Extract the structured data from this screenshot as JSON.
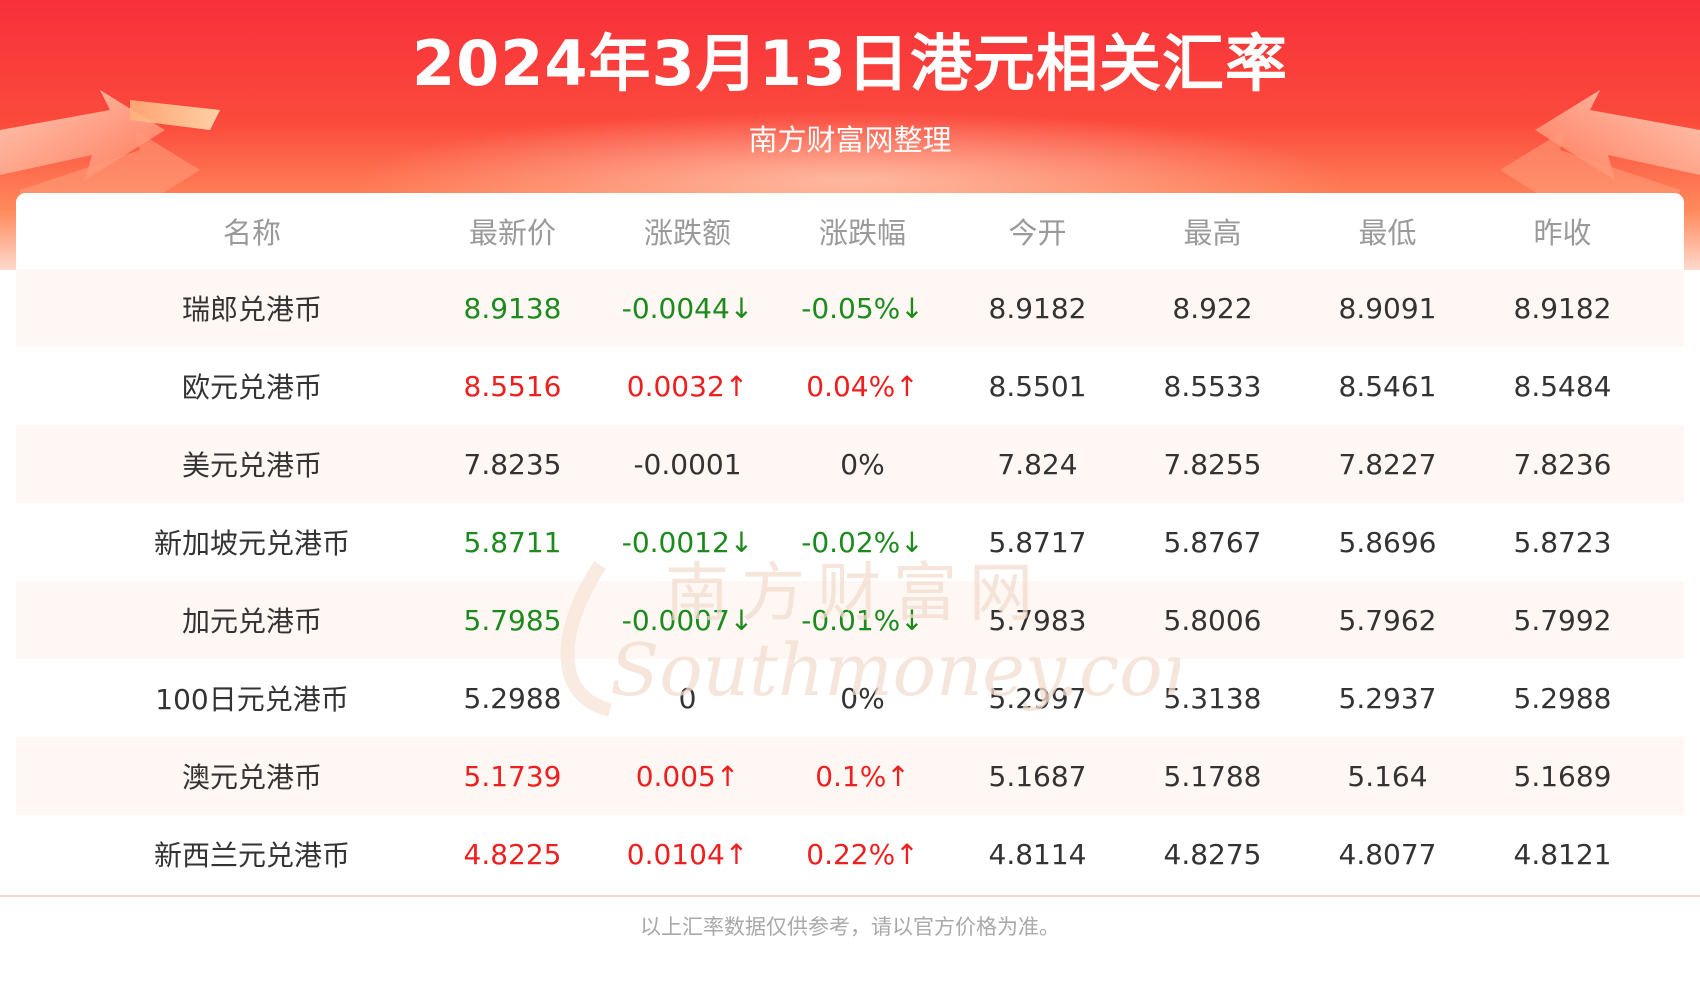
{
  "header": {
    "title": "2024年3月13日港元相关汇率",
    "subtitle": "南方财富网整理"
  },
  "watermark": {
    "line1": "南方财富网",
    "line2": "Southmoney.com"
  },
  "colors": {
    "up": "#ee1f1f",
    "down": "#1d8a1d",
    "flat": "#333333",
    "banner": "#f8303a"
  },
  "chart_data": {
    "type": "table",
    "title": "2024年3月13日港元相关汇率",
    "columns": [
      "名称",
      "最新价",
      "涨跌额",
      "涨跌幅",
      "今开",
      "最高",
      "最低",
      "昨收"
    ],
    "rows": [
      {
        "name": "瑞郎兑港币",
        "latest": "8.9138",
        "change": "-0.0044↓",
        "change_pct": "-0.05%↓",
        "open": "8.9182",
        "high": "8.922",
        "low": "8.9091",
        "prev_close": "8.9182",
        "trend": "down"
      },
      {
        "name": "欧元兑港币",
        "latest": "8.5516",
        "change": "0.0032↑",
        "change_pct": "0.04%↑",
        "open": "8.5501",
        "high": "8.5533",
        "low": "8.5461",
        "prev_close": "8.5484",
        "trend": "up"
      },
      {
        "name": "美元兑港币",
        "latest": "7.8235",
        "change": "-0.0001",
        "change_pct": "0%",
        "open": "7.824",
        "high": "7.8255",
        "low": "7.8227",
        "prev_close": "7.8236",
        "trend": "flat"
      },
      {
        "name": "新加坡元兑港币",
        "latest": "5.8711",
        "change": "-0.0012↓",
        "change_pct": "-0.02%↓",
        "open": "5.8717",
        "high": "5.8767",
        "low": "5.8696",
        "prev_close": "5.8723",
        "trend": "down"
      },
      {
        "name": "加元兑港币",
        "latest": "5.7985",
        "change": "-0.0007↓",
        "change_pct": "-0.01%↓",
        "open": "5.7983",
        "high": "5.8006",
        "low": "5.7962",
        "prev_close": "5.7992",
        "trend": "down"
      },
      {
        "name": "100日元兑港币",
        "latest": "5.2988",
        "change": "0",
        "change_pct": "0%",
        "open": "5.2997",
        "high": "5.3138",
        "low": "5.2937",
        "prev_close": "5.2988",
        "trend": "flat"
      },
      {
        "name": "澳元兑港币",
        "latest": "5.1739",
        "change": "0.005↑",
        "change_pct": "0.1%↑",
        "open": "5.1687",
        "high": "5.1788",
        "low": "5.164",
        "prev_close": "5.1689",
        "trend": "up"
      },
      {
        "name": "新西兰元兑港币",
        "latest": "4.8225",
        "change": "0.0104↑",
        "change_pct": "0.22%↑",
        "open": "4.8114",
        "high": "4.8275",
        "low": "4.8077",
        "prev_close": "4.8121",
        "trend": "up"
      }
    ]
  },
  "footer": {
    "note": "以上汇率数据仅供参考，请以官方价格为准。"
  }
}
